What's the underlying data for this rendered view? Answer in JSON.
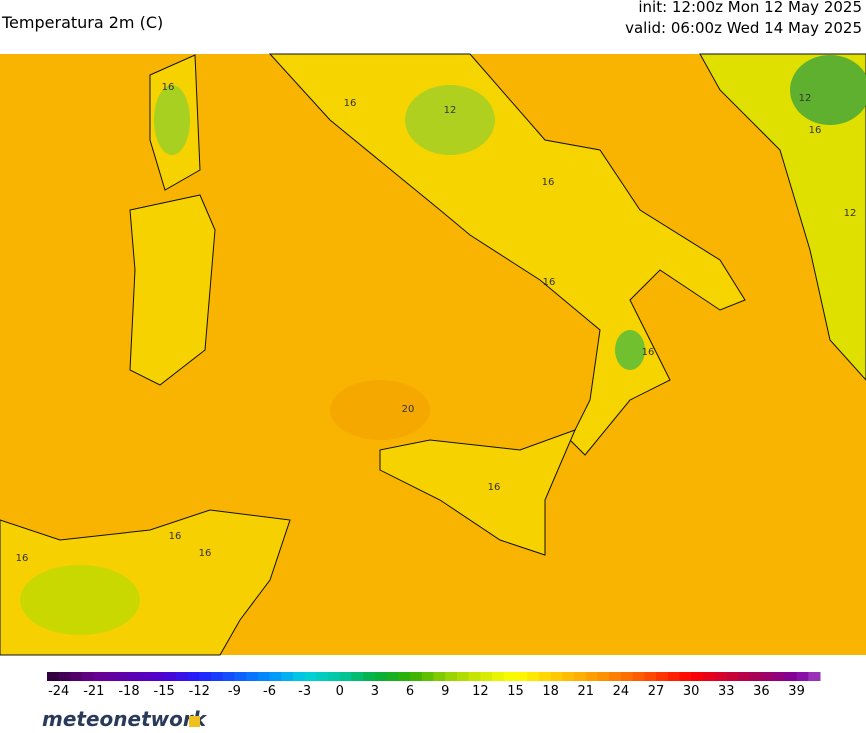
{
  "header": {
    "title": "Temperatura 2m (C)",
    "init": "init: 12:00z Mon 12 May 2025",
    "valid": "valid: 06:00z Wed 14 May 2025"
  },
  "map": {
    "contour_labels": [
      16,
      16,
      12,
      16,
      16,
      16,
      20,
      16,
      16,
      16,
      12,
      16,
      12,
      16
    ]
  },
  "colorbar": {
    "range": [
      -25,
      41
    ],
    "ticks": [
      -24,
      -21,
      -18,
      -15,
      -12,
      -9,
      -6,
      -3,
      0,
      3,
      6,
      9,
      12,
      15,
      18,
      21,
      24,
      27,
      30,
      33,
      36,
      39
    ],
    "stops": [
      [
        -25,
        "#2a0030"
      ],
      [
        -21,
        "#6a0090"
      ],
      [
        -15,
        "#5000d0"
      ],
      [
        -12,
        "#2020ff"
      ],
      [
        -6,
        "#0090ff"
      ],
      [
        -3,
        "#00d0e0"
      ],
      [
        0,
        "#00c8a0"
      ],
      [
        3,
        "#00b040"
      ],
      [
        6,
        "#30b000"
      ],
      [
        9,
        "#90d000"
      ],
      [
        12,
        "#d0e800"
      ],
      [
        15,
        "#ffff00"
      ],
      [
        18,
        "#ffd000"
      ],
      [
        21,
        "#ffa800"
      ],
      [
        24,
        "#ff7800"
      ],
      [
        27,
        "#ff4000"
      ],
      [
        30,
        "#ff0000"
      ],
      [
        33,
        "#d00030"
      ],
      [
        36,
        "#a00060"
      ],
      [
        39,
        "#8000a0"
      ],
      [
        41,
        "#a040c0"
      ]
    ]
  },
  "footer": {
    "brand": "meteonetwork"
  }
}
